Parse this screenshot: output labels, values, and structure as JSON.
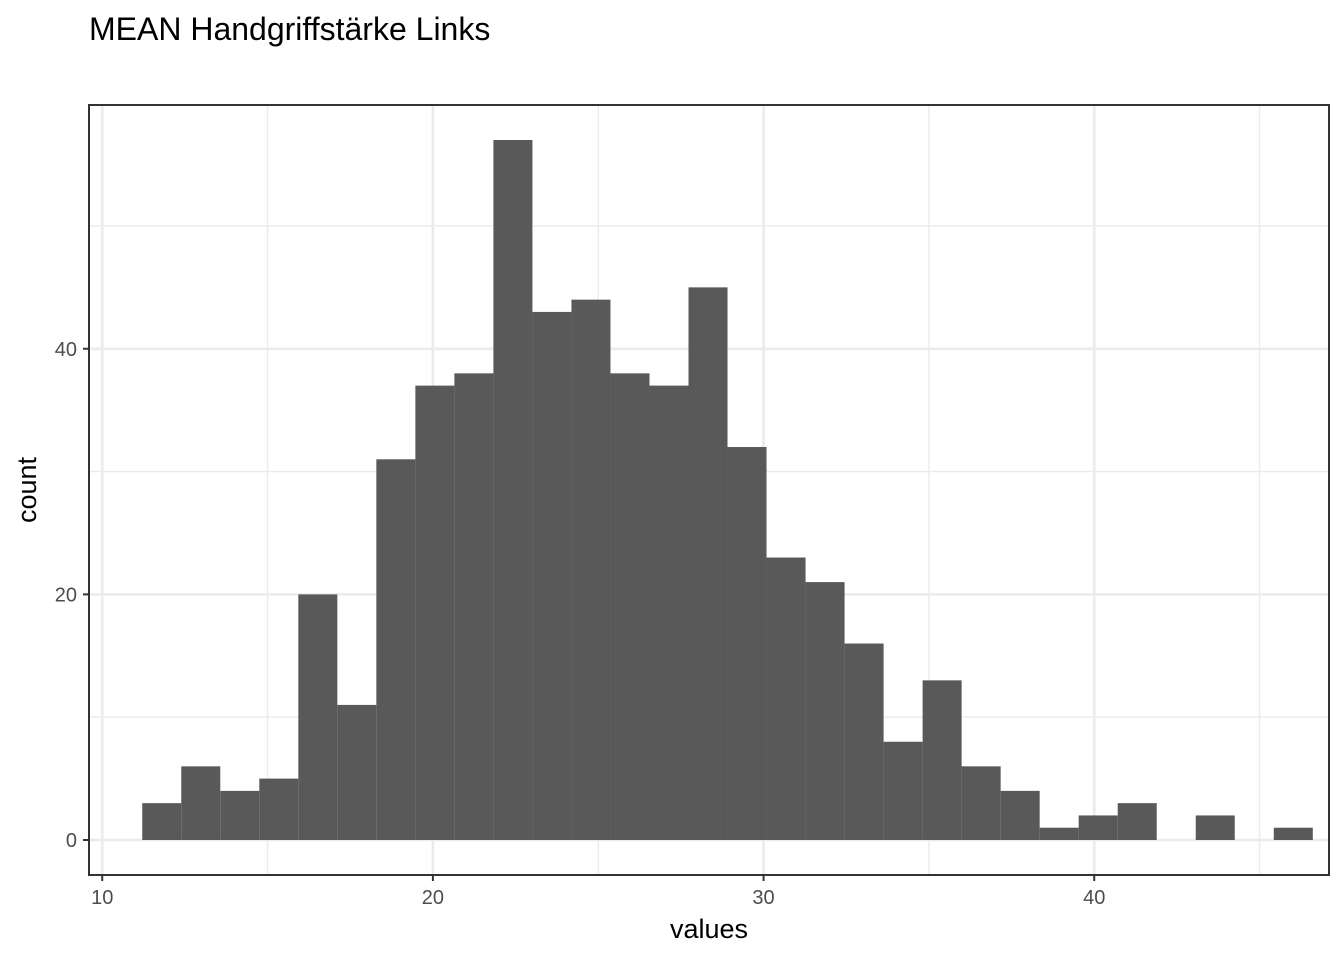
{
  "chart_data": {
    "type": "bar",
    "title": "MEAN Handgriffstärke Links",
    "xlabel": "values",
    "ylabel": "count",
    "bin_width": 1.18,
    "x": [
      11.8,
      12.98,
      14.16,
      15.34,
      16.52,
      17.7,
      18.88,
      20.06,
      21.24,
      22.42,
      23.6,
      24.78,
      25.96,
      27.14,
      28.32,
      29.5,
      30.68,
      31.86,
      33.04,
      34.22,
      35.4,
      36.58,
      37.76,
      38.94,
      40.12,
      41.3,
      42.48,
      43.66,
      44.84,
      46.02
    ],
    "values": [
      3,
      6,
      4,
      5,
      20,
      11,
      31,
      37,
      38,
      57,
      43,
      44,
      38,
      37,
      45,
      32,
      23,
      21,
      16,
      8,
      13,
      6,
      4,
      1,
      2,
      3,
      0,
      2,
      0,
      1
    ],
    "xlim": [
      9.6,
      47.1
    ],
    "ylim": [
      -2.85,
      59.85
    ],
    "x_ticks": [
      10,
      20,
      30,
      40
    ],
    "x_minor_ticks": [
      15,
      25,
      35,
      45
    ],
    "y_ticks": [
      0,
      20,
      40
    ],
    "y_minor_ticks": [
      10,
      30,
      50
    ],
    "grid": true,
    "theme": "bw"
  }
}
